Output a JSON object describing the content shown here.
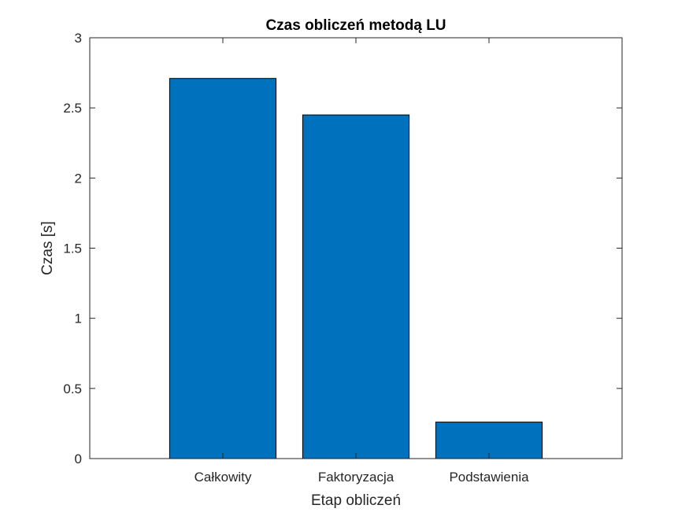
{
  "chart_data": {
    "type": "bar",
    "title": "Czas obliczeń metodą LU",
    "xlabel": "Etap obliczeń",
    "ylabel": "Czas [s]",
    "categories": [
      "Całkowity",
      "Faktoryzacja",
      "Podstawienia"
    ],
    "values": [
      2.71,
      2.45,
      0.26
    ],
    "ylim": [
      0,
      3
    ],
    "yticks": [
      0,
      0.5,
      1,
      1.5,
      2,
      2.5,
      3
    ],
    "ytick_labels": [
      "0",
      "0.5",
      "1",
      "1.5",
      "2",
      "2.5",
      "3"
    ],
    "bar_color": "#0072BD",
    "edge_color": "#000000",
    "grid": false,
    "legend": "none"
  }
}
